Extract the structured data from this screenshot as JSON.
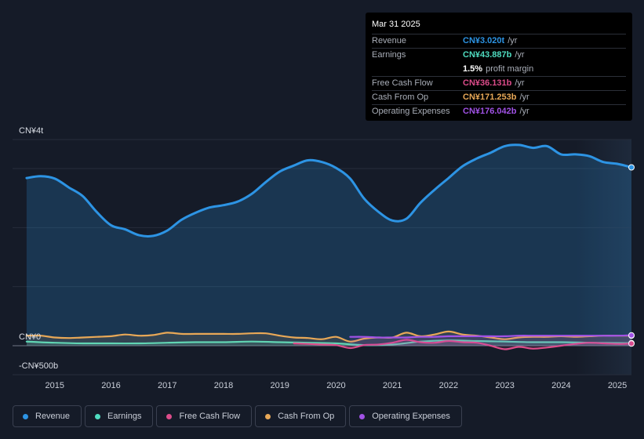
{
  "chart_data": {
    "type": "area",
    "title": "",
    "xlabel": "",
    "ylabel": "",
    "y_axis_labels": [
      "CN¥4t",
      "CN¥0",
      "-CN¥500b"
    ],
    "ylim": [
      -0.5,
      4
    ],
    "xlim": [
      2014.25,
      2025.25
    ],
    "x_ticks": [
      2015,
      2016,
      2017,
      2018,
      2019,
      2020,
      2021,
      2022,
      2023,
      2024,
      2025
    ],
    "x_tick_labels": [
      "2015",
      "2016",
      "2017",
      "2018",
      "2019",
      "2020",
      "2021",
      "2022",
      "2023",
      "2024",
      "2025"
    ],
    "forecast_start": 2024.25,
    "series": [
      {
        "name": "Revenue",
        "key": "revenue",
        "color": "#2d94e4",
        "fill": true,
        "x": [
          2014.5,
          2014.75,
          2015.0,
          2015.25,
          2015.5,
          2015.75,
          2016.0,
          2016.25,
          2016.5,
          2016.75,
          2017.0,
          2017.25,
          2017.5,
          2017.75,
          2018.0,
          2018.25,
          2018.5,
          2018.75,
          2019.0,
          2019.25,
          2019.5,
          2019.75,
          2020.0,
          2020.25,
          2020.5,
          2020.75,
          2021.0,
          2021.25,
          2021.5,
          2021.75,
          2022.0,
          2022.25,
          2022.5,
          2022.75,
          2023.0,
          2023.25,
          2023.5,
          2023.75,
          2024.0,
          2024.25,
          2024.5,
          2024.75,
          2025.0,
          2025.25
        ],
        "values": [
          2.84,
          2.87,
          2.83,
          2.68,
          2.53,
          2.26,
          2.04,
          1.97,
          1.87,
          1.86,
          1.95,
          2.13,
          2.25,
          2.34,
          2.38,
          2.44,
          2.57,
          2.77,
          2.95,
          3.05,
          3.14,
          3.11,
          3.01,
          2.83,
          2.49,
          2.27,
          2.12,
          2.15,
          2.42,
          2.64,
          2.84,
          3.04,
          3.17,
          3.27,
          3.38,
          3.4,
          3.35,
          3.38,
          3.24,
          3.24,
          3.21,
          3.11,
          3.08,
          3.02
        ]
      },
      {
        "name": "Earnings",
        "key": "earnings",
        "color": "#4fdcc0",
        "fill": false,
        "x": [
          2014.5,
          2015.0,
          2015.5,
          2016.0,
          2016.5,
          2017.0,
          2017.5,
          2018.0,
          2018.5,
          2019.0,
          2019.5,
          2020.0,
          2020.5,
          2021.0,
          2021.5,
          2022.0,
          2022.5,
          2023.0,
          2023.5,
          2024.0,
          2024.5,
          2025.0,
          2025.25
        ],
        "values": [
          0.07,
          0.05,
          0.04,
          0.04,
          0.04,
          0.05,
          0.06,
          0.06,
          0.07,
          0.06,
          0.05,
          0.04,
          0.01,
          0.02,
          0.07,
          0.09,
          0.08,
          0.07,
          0.06,
          0.06,
          0.05,
          0.045,
          0.044
        ]
      },
      {
        "name": "Free Cash Flow",
        "key": "fcf",
        "color": "#dc4c8a",
        "fill": false,
        "x": [
          2019.25,
          2019.5,
          2019.75,
          2020.0,
          2020.25,
          2020.5,
          2020.75,
          2021.0,
          2021.25,
          2021.5,
          2021.75,
          2022.0,
          2022.25,
          2022.5,
          2022.75,
          2023.0,
          2023.25,
          2023.5,
          2023.75,
          2024.0,
          2024.25,
          2024.5,
          2024.75,
          2025.0,
          2025.25
        ],
        "values": [
          0.04,
          0.03,
          0.02,
          0.01,
          -0.04,
          0.01,
          0.02,
          0.05,
          0.1,
          0.06,
          0.05,
          0.08,
          0.06,
          0.05,
          0.0,
          -0.06,
          -0.02,
          -0.05,
          -0.03,
          0.0,
          0.03,
          0.05,
          0.04,
          0.03,
          0.036
        ]
      },
      {
        "name": "Cash From Op",
        "key": "cfo",
        "color": "#e8a857",
        "fill": false,
        "x": [
          2014.5,
          2014.75,
          2015.0,
          2015.25,
          2015.5,
          2015.75,
          2016.0,
          2016.25,
          2016.5,
          2016.75,
          2017.0,
          2017.25,
          2017.5,
          2017.75,
          2018.0,
          2018.25,
          2018.5,
          2018.75,
          2019.0,
          2019.25,
          2019.5,
          2019.75,
          2020.0,
          2020.25,
          2020.5,
          2020.75,
          2021.0,
          2021.25,
          2021.5,
          2021.75,
          2022.0,
          2022.25,
          2022.5,
          2022.75,
          2023.0,
          2023.25,
          2023.5,
          2023.75,
          2024.0,
          2024.25,
          2024.5,
          2024.75,
          2025.0,
          2025.25
        ],
        "values": [
          0.17,
          0.17,
          0.14,
          0.13,
          0.14,
          0.15,
          0.16,
          0.19,
          0.17,
          0.18,
          0.22,
          0.2,
          0.2,
          0.2,
          0.2,
          0.2,
          0.21,
          0.21,
          0.17,
          0.14,
          0.13,
          0.11,
          0.15,
          0.07,
          0.12,
          0.14,
          0.14,
          0.22,
          0.16,
          0.19,
          0.24,
          0.19,
          0.17,
          0.14,
          0.11,
          0.14,
          0.15,
          0.15,
          0.16,
          0.15,
          0.16,
          0.17,
          0.17,
          0.171
        ]
      },
      {
        "name": "Operating Expenses",
        "key": "opex",
        "color": "#a152e6",
        "fill": false,
        "x": [
          2020.25,
          2020.5,
          2020.75,
          2021.0,
          2021.25,
          2021.5,
          2021.75,
          2022.0,
          2022.25,
          2022.5,
          2022.75,
          2023.0,
          2023.25,
          2023.5,
          2023.75,
          2024.0,
          2024.25,
          2024.5,
          2024.75,
          2025.0,
          2025.25
        ],
        "values": [
          0.15,
          0.15,
          0.14,
          0.14,
          0.14,
          0.15,
          0.15,
          0.16,
          0.16,
          0.16,
          0.16,
          0.16,
          0.17,
          0.17,
          0.17,
          0.17,
          0.17,
          0.17,
          0.17,
          0.17,
          0.176
        ]
      }
    ]
  },
  "tooltip": {
    "date": "Mar 31 2025",
    "rows": [
      {
        "label": "Revenue",
        "value": "CN¥3.020t",
        "unit": "/yr",
        "color": "#2d94e4"
      },
      {
        "label": "Earnings",
        "value": "CN¥43.887b",
        "unit": "/yr",
        "color": "#4fdcc0"
      },
      {
        "label": "",
        "value": "1.5%",
        "unit": "profit margin",
        "color": "#ffffff"
      },
      {
        "label": "Free Cash Flow",
        "value": "CN¥36.131b",
        "unit": "/yr",
        "color": "#dc4c8a"
      },
      {
        "label": "Cash From Op",
        "value": "CN¥171.253b",
        "unit": "/yr",
        "color": "#e8a857"
      },
      {
        "label": "Operating Expenses",
        "value": "CN¥176.042b",
        "unit": "/yr",
        "color": "#a152e6"
      }
    ]
  },
  "legend": [
    {
      "label": "Revenue",
      "color": "#2d94e4"
    },
    {
      "label": "Earnings",
      "color": "#4fdcc0"
    },
    {
      "label": "Free Cash Flow",
      "color": "#dc4c8a"
    },
    {
      "label": "Cash From Op",
      "color": "#e8a857"
    },
    {
      "label": "Operating Expenses",
      "color": "#a152e6"
    }
  ]
}
